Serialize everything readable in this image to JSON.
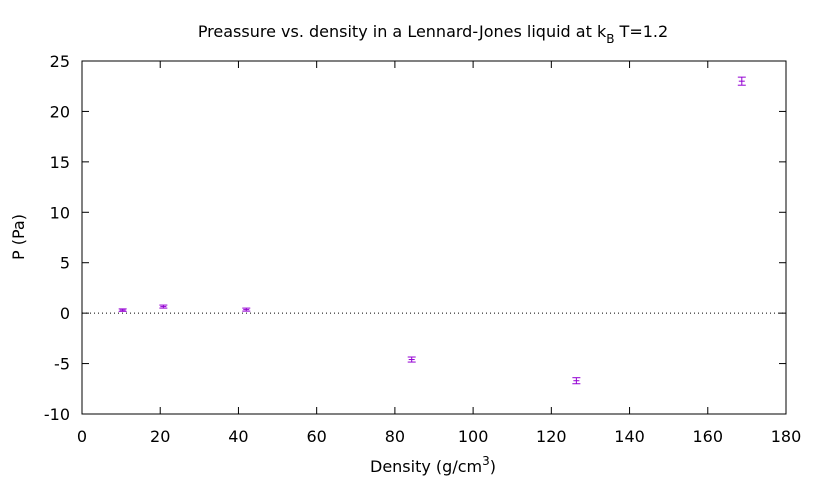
{
  "chart_data": {
    "type": "scatter",
    "title": {
      "main": "Preassure vs. density in a Lennard-Jones liquid at k",
      "subscript": "B",
      "tail": " T=1.2"
    },
    "xlabel": {
      "main": "Density (g/cm",
      "superscript": "3",
      "tail": ")"
    },
    "ylabel": "P (Pa)",
    "xlim": [
      0,
      180
    ],
    "ylim": [
      -10,
      25
    ],
    "xticks": [
      "0",
      "20",
      "40",
      "60",
      "80",
      "100",
      "120",
      "140",
      "160",
      "180"
    ],
    "yticks": [
      "-10",
      "-5",
      "0",
      "5",
      "10",
      "15",
      "20",
      "25"
    ],
    "grid": false,
    "zero_line": true,
    "series": [
      {
        "color": "#9400d3",
        "points": [
          {
            "x": 10.4,
            "y": 0.3,
            "err": 0.12
          },
          {
            "x": 20.8,
            "y": 0.65,
            "err": 0.15
          },
          {
            "x": 42.0,
            "y": 0.35,
            "err": 0.15
          },
          {
            "x": 84.3,
            "y": -4.6,
            "err": 0.25
          },
          {
            "x": 126.4,
            "y": -6.7,
            "err": 0.3
          },
          {
            "x": 168.7,
            "y": 23.0,
            "err": 0.4
          }
        ]
      }
    ]
  }
}
